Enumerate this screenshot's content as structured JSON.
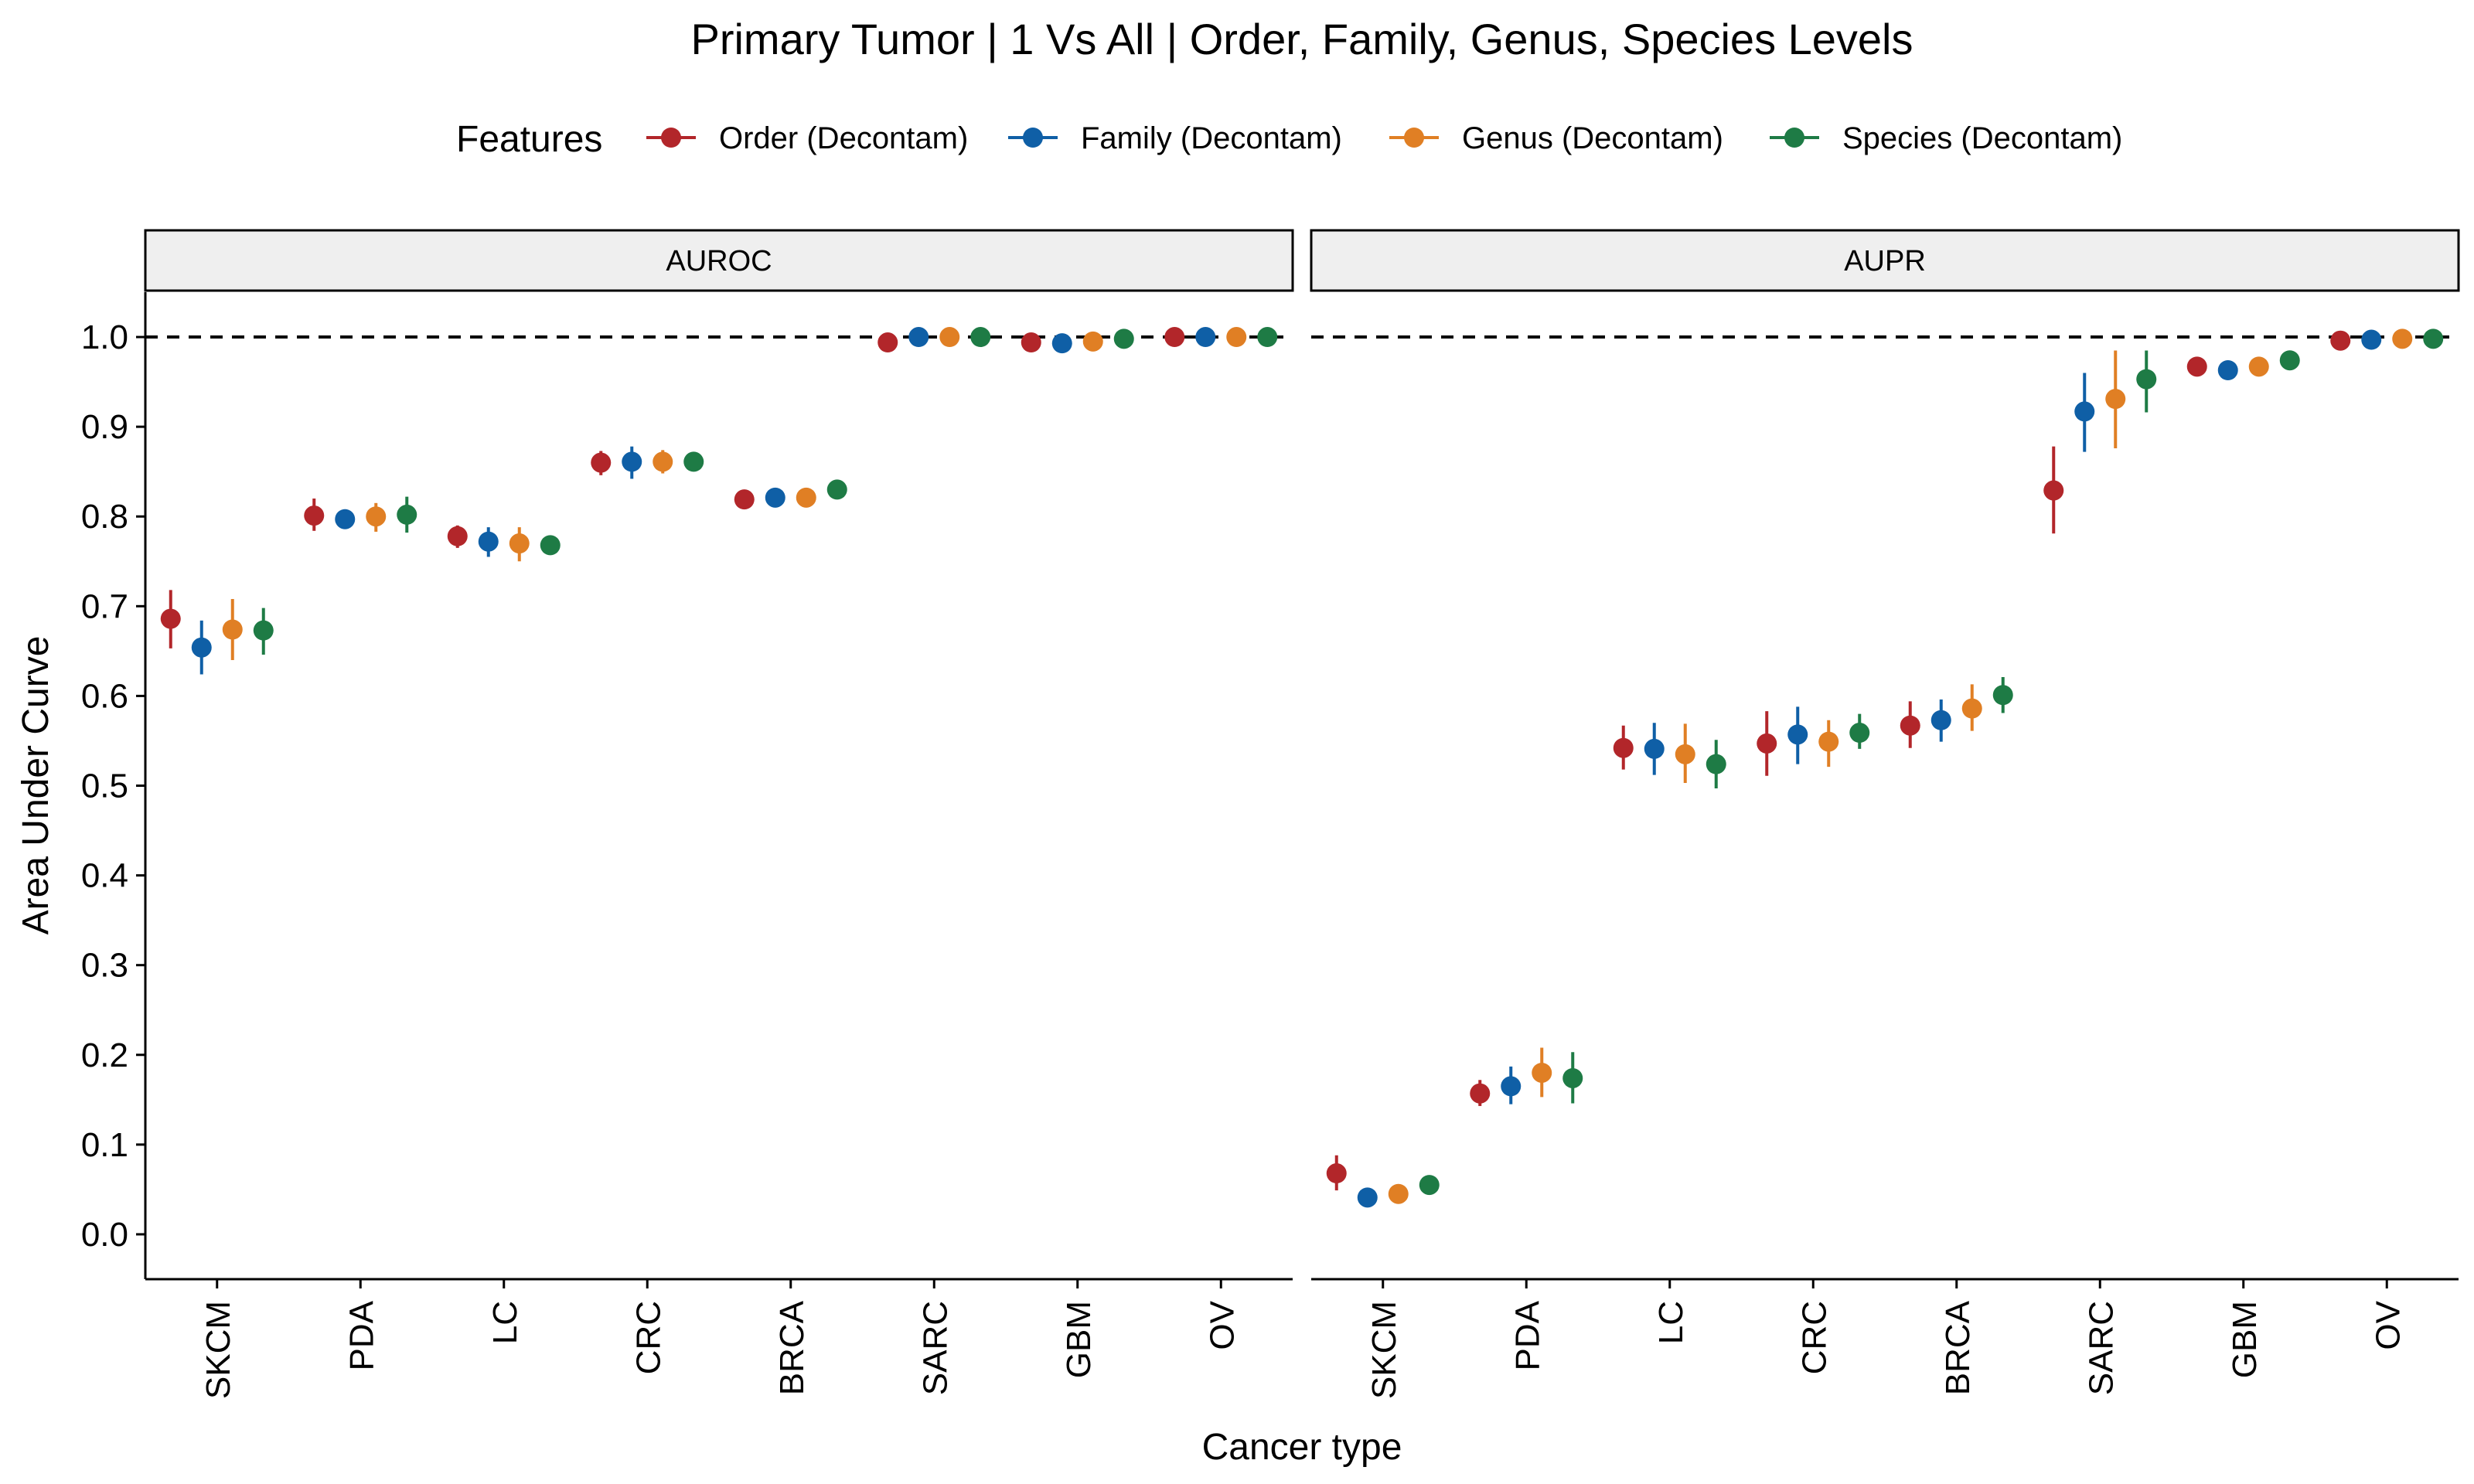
{
  "chart_data": {
    "type": "scatter",
    "title": "Primary Tumor | 1 Vs All | Order, Family, Genus, Species Levels",
    "xlabel": "Cancer type",
    "ylabel": "Area Under Curve",
    "ylim": [
      -0.05,
      1.05
    ],
    "y_ticks": [
      "0.0",
      "0.1",
      "0.2",
      "0.3",
      "0.4",
      "0.5",
      "0.6",
      "0.7",
      "0.8",
      "0.9",
      "1.0"
    ],
    "reference_line": 1.0,
    "legend": {
      "title": "Features",
      "position": "top"
    },
    "categories": [
      "SKCM",
      "PDA",
      "LC",
      "CRC",
      "BRCA",
      "SARC",
      "GBM",
      "OV"
    ],
    "series": [
      {
        "name": "Order (Decontam)",
        "color": "#B2262A"
      },
      {
        "name": "Family (Decontam)",
        "color": "#0F5FA6"
      },
      {
        "name": "Genus (Decontam)",
        "color": "#E07F24"
      },
      {
        "name": "Species (Decontam)",
        "color": "#1E7B45"
      }
    ],
    "panels": [
      {
        "label": "AUROC",
        "values": [
          [
            0.686,
            0.801,
            0.778,
            0.86,
            0.819,
            0.994,
            0.994,
            1.0
          ],
          [
            0.654,
            0.797,
            0.772,
            0.861,
            0.821,
            1.0,
            0.993,
            1.0
          ],
          [
            0.674,
            0.8,
            0.77,
            0.861,
            0.821,
            1.0,
            0.995,
            1.0
          ],
          [
            0.673,
            0.802,
            0.768,
            0.861,
            0.83,
            1.0,
            0.998,
            1.0
          ]
        ],
        "lower": [
          [
            0.653,
            0.784,
            0.765,
            0.846,
            0.812,
            0.988,
            0.988,
            0.998
          ],
          [
            0.624,
            0.786,
            0.755,
            0.842,
            0.814,
            0.998,
            0.986,
            0.998
          ],
          [
            0.64,
            0.783,
            0.75,
            0.848,
            0.814,
            0.998,
            0.989,
            0.998
          ],
          [
            0.646,
            0.782,
            0.76,
            0.852,
            0.823,
            0.998,
            0.995,
            0.998
          ]
        ],
        "upper": [
          [
            0.718,
            0.82,
            0.79,
            0.873,
            0.826,
            0.998,
            0.998,
            1.0
          ],
          [
            0.684,
            0.808,
            0.788,
            0.878,
            0.828,
            1.0,
            0.998,
            1.0
          ],
          [
            0.708,
            0.815,
            0.788,
            0.874,
            0.828,
            1.0,
            0.999,
            1.0
          ],
          [
            0.698,
            0.822,
            0.776,
            0.87,
            0.837,
            1.0,
            1.0,
            1.0
          ]
        ]
      },
      {
        "label": "AUPR",
        "values": [
          [
            0.068,
            0.157,
            0.542,
            0.547,
            0.567,
            0.829,
            0.967,
            0.996
          ],
          [
            0.041,
            0.165,
            0.541,
            0.557,
            0.573,
            0.917,
            0.963,
            0.997
          ],
          [
            0.045,
            0.18,
            0.535,
            0.549,
            0.586,
            0.931,
            0.967,
            0.998
          ],
          [
            0.055,
            0.174,
            0.524,
            0.559,
            0.601,
            0.953,
            0.974,
            0.998
          ]
        ],
        "lower": [
          [
            0.049,
            0.143,
            0.518,
            0.511,
            0.542,
            0.781,
            0.96,
            0.992
          ],
          [
            0.035,
            0.145,
            0.512,
            0.524,
            0.549,
            0.872,
            0.956,
            0.994
          ],
          [
            0.04,
            0.153,
            0.503,
            0.521,
            0.561,
            0.876,
            0.961,
            0.995
          ],
          [
            0.048,
            0.146,
            0.497,
            0.541,
            0.581,
            0.916,
            0.968,
            0.996
          ]
        ],
        "upper": [
          [
            0.088,
            0.172,
            0.567,
            0.583,
            0.594,
            0.878,
            0.974,
            1.0
          ],
          [
            0.05,
            0.187,
            0.57,
            0.588,
            0.596,
            0.96,
            0.97,
            1.0
          ],
          [
            0.052,
            0.208,
            0.569,
            0.573,
            0.613,
            0.985,
            0.973,
            1.0
          ],
          [
            0.062,
            0.203,
            0.551,
            0.58,
            0.621,
            0.985,
            0.98,
            1.0
          ]
        ]
      }
    ]
  }
}
